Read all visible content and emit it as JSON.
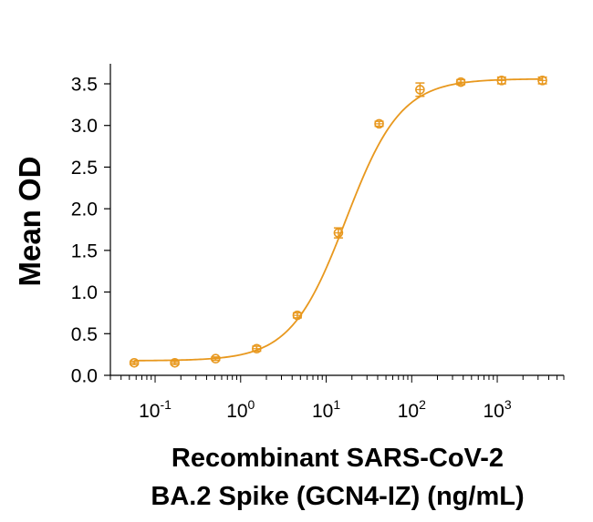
{
  "chart_data": {
    "type": "scatter",
    "title": "",
    "xlabel_lines": [
      "Recombinant SARS-CoV-2",
      "BA.2 Spike (GCN4-IZ) (ng/mL)"
    ],
    "ylabel": "Mean OD",
    "x_scale": "log",
    "xlim": [
      0.03,
      6000
    ],
    "ylim": [
      0.0,
      3.6
    ],
    "x_ticks": [
      {
        "value": 0.1,
        "base": "10",
        "exp": "-1"
      },
      {
        "value": 1,
        "base": "10",
        "exp": "0"
      },
      {
        "value": 10,
        "base": "10",
        "exp": "1"
      },
      {
        "value": 100,
        "base": "10",
        "exp": "2"
      },
      {
        "value": 1000,
        "base": "10",
        "exp": "3"
      }
    ],
    "y_ticks": [
      "0.0",
      "0.5",
      "1.0",
      "1.5",
      "2.0",
      "2.5",
      "3.0",
      "3.5"
    ],
    "grid": false,
    "color": "#E8981E",
    "series": [
      {
        "points": [
          {
            "x": 0.057,
            "y": 0.15,
            "err": 0.02
          },
          {
            "x": 0.17,
            "y": 0.15,
            "err": 0.02
          },
          {
            "x": 0.51,
            "y": 0.2,
            "err": 0.02
          },
          {
            "x": 1.54,
            "y": 0.32,
            "err": 0.03
          },
          {
            "x": 4.6,
            "y": 0.72,
            "err": 0.03
          },
          {
            "x": 13.9,
            "y": 1.71,
            "err": 0.06
          },
          {
            "x": 41.6,
            "y": 3.02,
            "err": 0.03
          },
          {
            "x": 125,
            "y": 3.43,
            "err": 0.08
          },
          {
            "x": 375,
            "y": 3.52,
            "err": 0.03
          },
          {
            "x": 1125,
            "y": 3.54,
            "err": 0.04
          },
          {
            "x": 3375,
            "y": 3.54,
            "err": 0.04
          }
        ],
        "fit": {
          "model": "4PL",
          "bottom": 0.175,
          "top": 3.56,
          "ec50": 17,
          "hill": 1.35
        }
      }
    ]
  }
}
